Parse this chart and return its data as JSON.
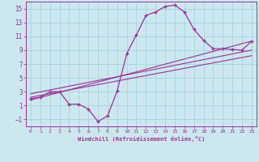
{
  "xlabel": "Windchill (Refroidissement éolien,°C)",
  "bg_color": "#cce8ee",
  "grid_color": "#a8d4dc",
  "line_color": "#993399",
  "xlim": [
    -0.5,
    23.5
  ],
  "ylim": [
    -2.0,
    16.0
  ],
  "xticks": [
    0,
    1,
    2,
    3,
    4,
    5,
    6,
    7,
    8,
    9,
    10,
    11,
    12,
    13,
    14,
    15,
    16,
    17,
    18,
    19,
    20,
    21,
    22,
    23
  ],
  "yticks": [
    -1,
    1,
    3,
    5,
    7,
    9,
    11,
    13,
    15
  ],
  "curve_x": [
    0,
    1,
    2,
    3,
    4,
    5,
    6,
    7,
    8,
    9,
    10,
    11,
    12,
    13,
    14,
    15,
    16,
    17,
    18,
    19,
    20,
    21,
    22,
    23
  ],
  "curve_y": [
    2.0,
    2.2,
    3.0,
    3.0,
    1.2,
    1.2,
    0.5,
    -1.3,
    -0.5,
    3.1,
    8.5,
    11.2,
    14.0,
    14.5,
    15.3,
    15.5,
    14.5,
    12.0,
    10.4,
    9.2,
    9.2,
    9.1,
    9.0,
    10.3
  ],
  "line1_x": [
    0,
    23
  ],
  "line1_y": [
    2.2,
    8.2
  ],
  "line2_x": [
    0,
    23
  ],
  "line2_y": [
    2.7,
    9.0
  ],
  "line3_x": [
    0,
    23
  ],
  "line3_y": [
    1.8,
    10.3
  ],
  "xlabel_fontsize": 5.0,
  "tick_fontsize_x": 4.5,
  "tick_fontsize_y": 5.5
}
